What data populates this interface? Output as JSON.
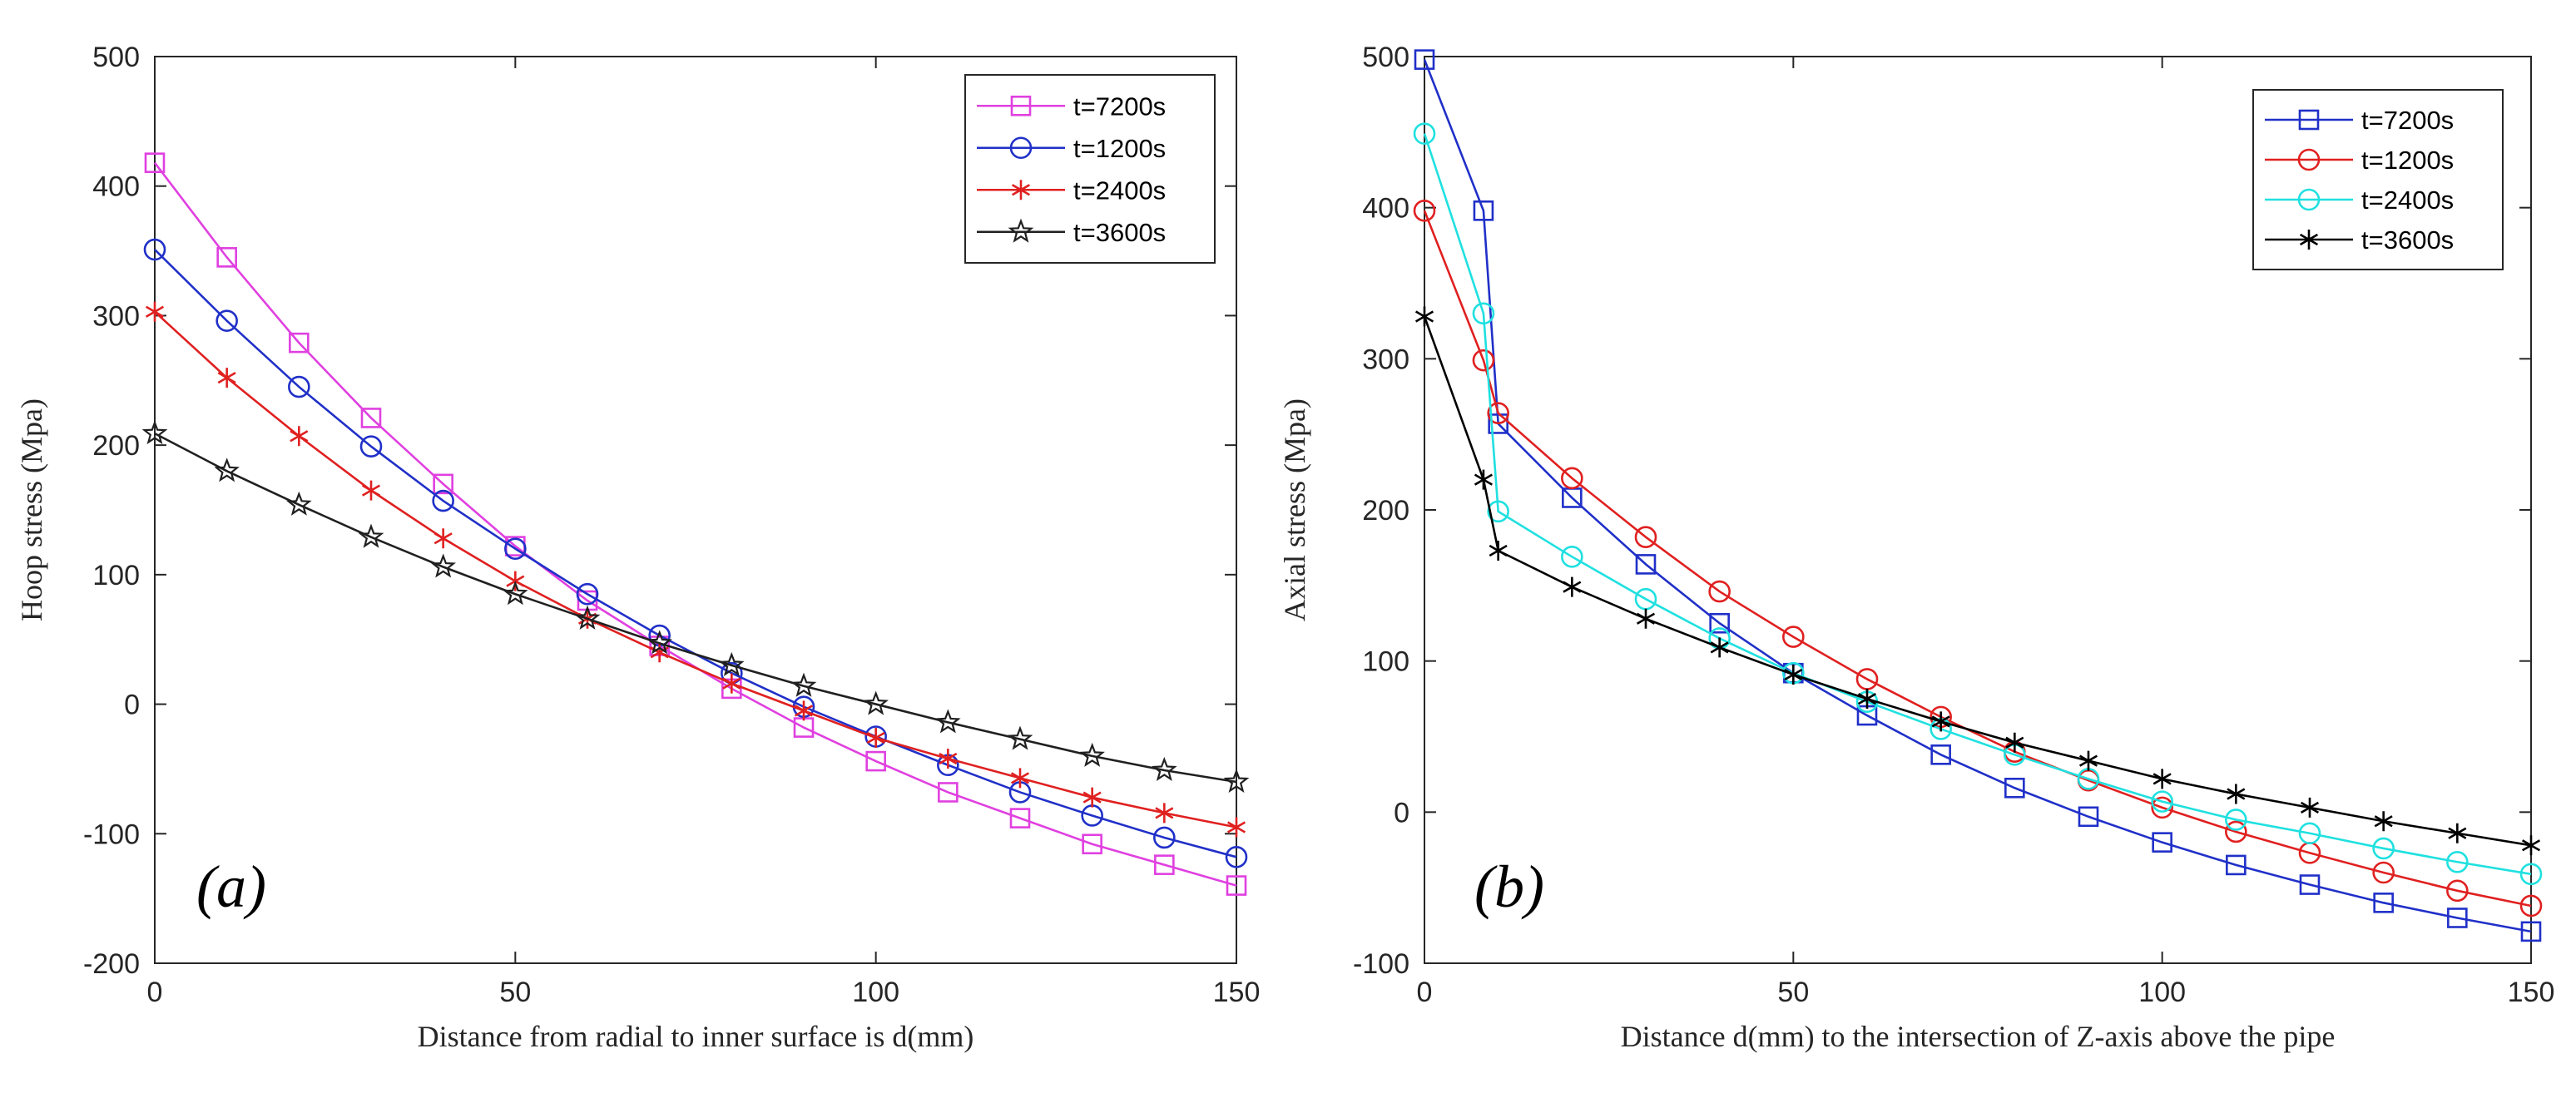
{
  "chart_data": [
    {
      "type": "line",
      "panel_label": "(a)",
      "xlabel": "Distance from radial to inner surface is d(mm)",
      "ylabel": "Hoop stress (Mpa)",
      "xlim": [
        0,
        150
      ],
      "ylim": [
        -200,
        500
      ],
      "xticks": [
        "0",
        "50",
        "100",
        "150"
      ],
      "yticks": [
        "-200",
        "-100",
        "0",
        "100",
        "200",
        "300",
        "400",
        "500"
      ],
      "grid": false,
      "legend_position": "top-right",
      "x": [
        0,
        10,
        20,
        30,
        40,
        50,
        60,
        70,
        80,
        90,
        100,
        110,
        120,
        130,
        140,
        150
      ],
      "series": [
        {
          "name": "t=7200s",
          "color": "#e040e0",
          "marker": "square",
          "values": [
            418,
            345,
            279,
            221,
            170,
            122,
            80,
            45,
            12,
            -18,
            -44,
            -68,
            -88,
            -108,
            -124,
            -140
          ]
        },
        {
          "name": "t=1200s",
          "color": "#2030c8",
          "marker": "circle",
          "values": [
            351,
            296,
            245,
            199,
            157,
            120,
            85,
            53,
            24,
            -2,
            -25,
            -47,
            -68,
            -86,
            -103,
            -118
          ]
        },
        {
          "name": "t=2400s",
          "color": "#e02020",
          "marker": "star6",
          "values": [
            303,
            252,
            207,
            165,
            128,
            95,
            66,
            40,
            16,
            -5,
            -26,
            -42,
            -57,
            -72,
            -84,
            -95
          ]
        },
        {
          "name": "t=3600s",
          "color": "#202020",
          "marker": "pentagram",
          "values": [
            209,
            180,
            154,
            129,
            106,
            85,
            66,
            47,
            30,
            14,
            0,
            -14,
            -27,
            -40,
            -51,
            -60
          ]
        }
      ]
    },
    {
      "type": "line",
      "panel_label": "(b)",
      "xlabel": "Distance d(mm) to the intersection of Z-axis above the pipe",
      "ylabel": "Axial stress (Mpa)",
      "xlim": [
        0,
        150
      ],
      "ylim": [
        -100,
        500
      ],
      "xticks": [
        "0",
        "50",
        "100",
        "150"
      ],
      "yticks": [
        "-100",
        "0",
        "100",
        "200",
        "300",
        "400",
        "500"
      ],
      "grid": false,
      "legend_position": "top-right",
      "x": [
        0,
        8,
        10,
        20,
        30,
        40,
        50,
        60,
        70,
        80,
        90,
        100,
        110,
        120,
        130,
        140,
        150
      ],
      "series": [
        {
          "name": "t=7200s",
          "color": "#2030c8",
          "marker": "square",
          "values": [
            498,
            398,
            257,
            208,
            164,
            125,
            92,
            64,
            38,
            16,
            -3,
            -20,
            -35,
            -48,
            -60,
            -70,
            -79
          ]
        },
        {
          "name": "t=1200s",
          "color": "#e02020",
          "marker": "circle",
          "values": [
            398,
            299,
            264,
            221,
            182,
            146,
            116,
            88,
            63,
            40,
            21,
            3,
            -13,
            -27,
            -40,
            -52,
            -62
          ]
        },
        {
          "name": "t=2400s",
          "color": "#20e0e0",
          "marker": "circle",
          "values": [
            449,
            330,
            199,
            169,
            141,
            115,
            92,
            73,
            55,
            38,
            22,
            7,
            -5,
            -14,
            -24,
            -33,
            -41
          ]
        },
        {
          "name": "t=3600s",
          "color": "#000000",
          "marker": "star6",
          "values": [
            328,
            220,
            173,
            149,
            128,
            109,
            91,
            75,
            60,
            46,
            34,
            22,
            12,
            3,
            -6,
            -14,
            -22
          ]
        }
      ]
    }
  ]
}
